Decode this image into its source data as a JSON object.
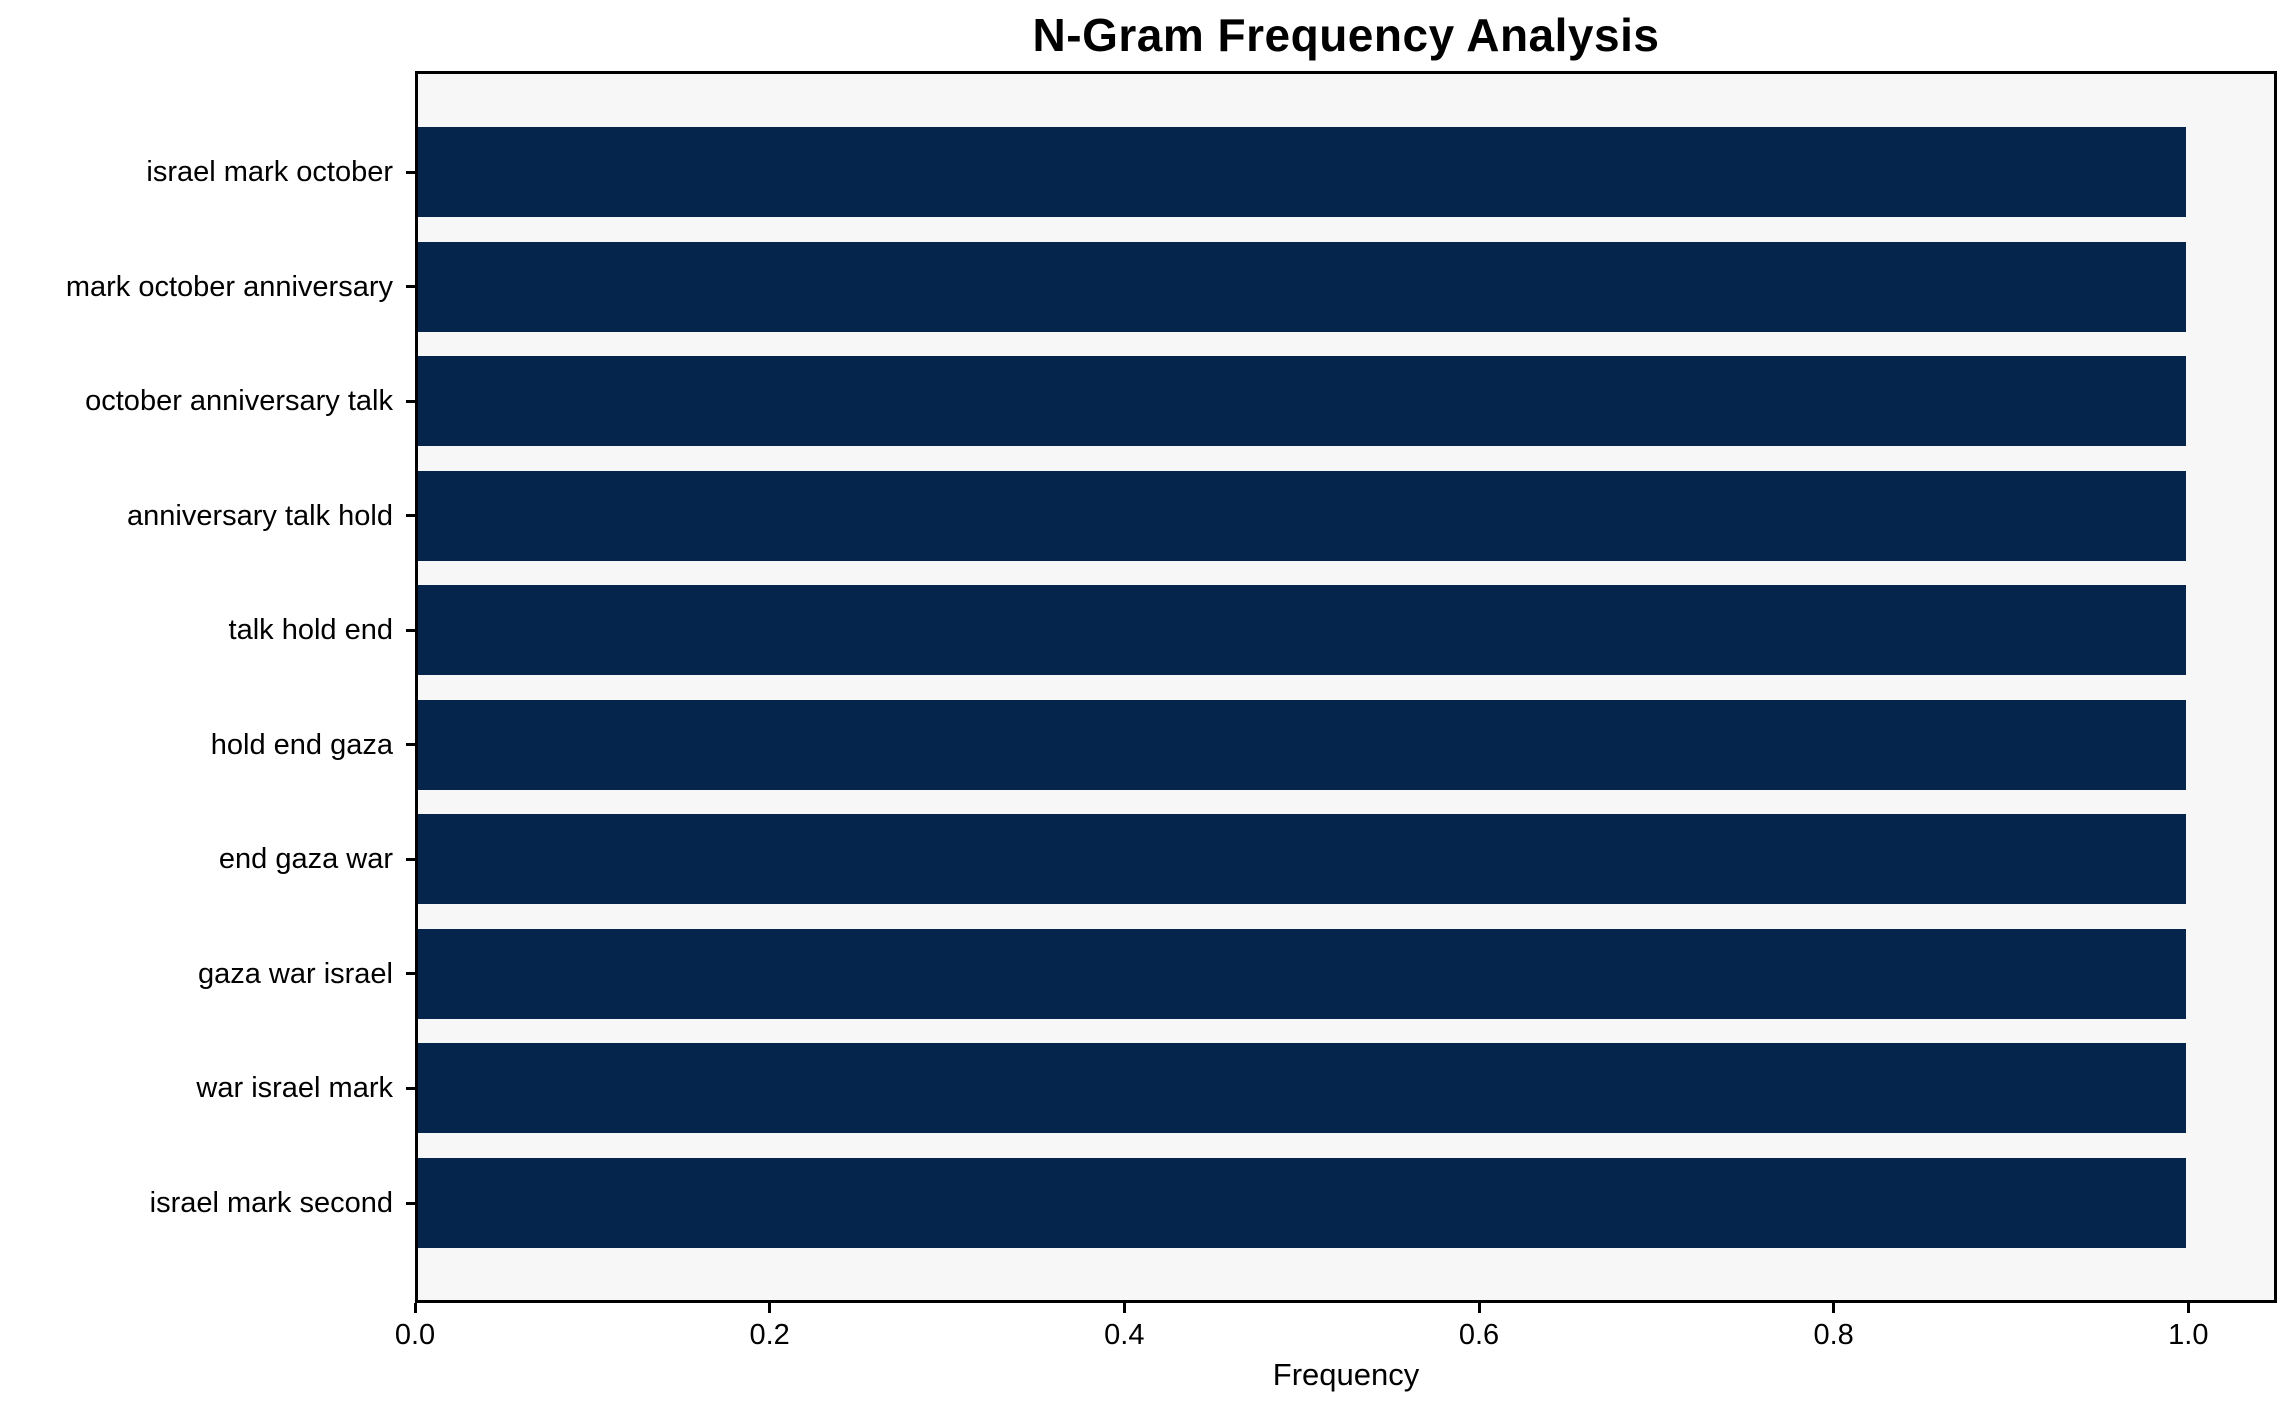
{
  "chart_data": {
    "type": "bar",
    "orientation": "horizontal",
    "title": "N-Gram Frequency Analysis",
    "xlabel": "Frequency",
    "categories": [
      "israel mark october",
      "mark october anniversary",
      "october anniversary talk",
      "anniversary talk hold",
      "talk hold end",
      "hold end gaza",
      "end gaza war",
      "gaza war israel",
      "war israel mark",
      "israel mark second"
    ],
    "values": [
      1.0,
      1.0,
      1.0,
      1.0,
      1.0,
      1.0,
      1.0,
      1.0,
      1.0,
      1.0
    ],
    "xlim": [
      0.0,
      1.05
    ],
    "xticks": [
      0.0,
      0.2,
      0.4,
      0.6,
      0.8,
      1.0
    ],
    "xtick_labels": [
      "0.0",
      "0.2",
      "0.4",
      "0.6",
      "0.8",
      "1.0"
    ],
    "grid": false,
    "legend": "none",
    "colors": {
      "bar": "#05254d",
      "plot_background": "#f7f7f7",
      "figure_background": "#ffffff",
      "spine": "#000000",
      "text": "#000000"
    }
  }
}
